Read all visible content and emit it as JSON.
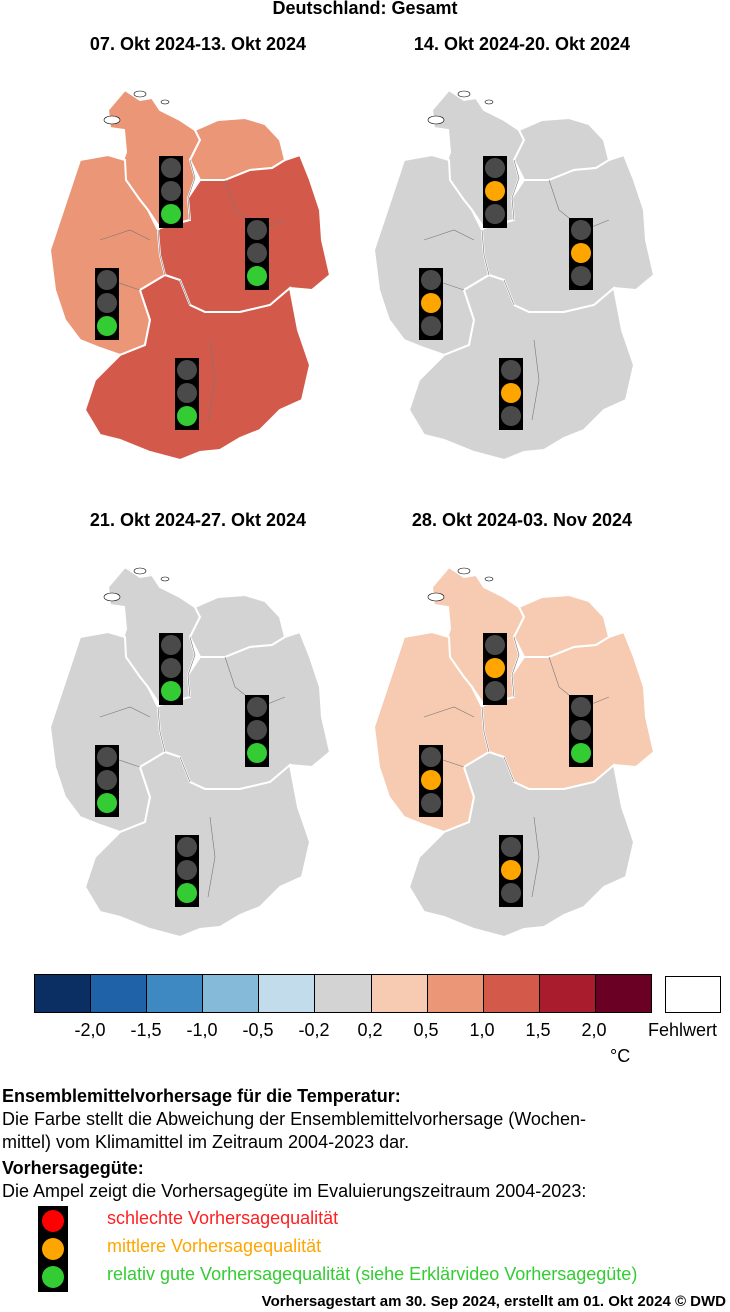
{
  "title": "Deutschland: Gesamt",
  "colors": {
    "bin_n20": "#0b2f63",
    "bin_n15": "#2062a8",
    "bin_n10": "#3f89c2",
    "bin_n05": "#85bad9",
    "bin_n02": "#c3dceb",
    "bin_0": "#d3d3d3",
    "bin_p02": "#f6cbb2",
    "bin_p05": "#ec9678",
    "bin_p10": "#d35a4b",
    "bin_p15": "#a81c2e",
    "bin_p20": "#6a0023",
    "missing": "#ffffff",
    "lamp_off": "#4a4a4a",
    "red": "#ff0000",
    "orange": "#ffa500",
    "green": "#33cc33"
  },
  "panels": [
    {
      "title": "07. Okt 2024-13. Okt 2024",
      "regions": {
        "north": "bin_p05",
        "northwest": "bin_p05",
        "west": "bin_p05",
        "east": "bin_p10",
        "south": "bin_p10"
      },
      "lights": {
        "north": "green",
        "west": "green",
        "east": "green",
        "south": "green"
      }
    },
    {
      "title": "14. Okt 2024-20. Okt 2024",
      "regions": {
        "north": "bin_0",
        "northwest": "bin_0",
        "west": "bin_0",
        "east": "bin_0",
        "south": "bin_0"
      },
      "lights": {
        "north": "orange",
        "west": "orange",
        "east": "orange",
        "south": "orange"
      }
    },
    {
      "title": "21. Okt 2024-27. Okt 2024",
      "regions": {
        "north": "bin_0",
        "northwest": "bin_0",
        "west": "bin_0",
        "east": "bin_0",
        "south": "bin_0"
      },
      "lights": {
        "north": "green",
        "west": "green",
        "east": "green",
        "south": "green"
      }
    },
    {
      "title": "28. Okt 2024-03. Nov 2024",
      "regions": {
        "north": "bin_p02",
        "northwest": "bin_p02",
        "west": "bin_p02",
        "east": "bin_p02",
        "south": "bin_0"
      },
      "lights": {
        "north": "orange",
        "west": "orange",
        "east": "green",
        "south": "orange"
      }
    }
  ],
  "colorbar": {
    "bins": [
      "bin_n20",
      "bin_n15",
      "bin_n10",
      "bin_n05",
      "bin_n02",
      "bin_0",
      "bin_p02",
      "bin_p05",
      "bin_p10",
      "bin_p15",
      "bin_p20"
    ],
    "ticks": [
      "-2,0",
      "-1,5",
      "-1,0",
      "-0,5",
      "-0,2",
      "0,2",
      "0,5",
      "1,0",
      "1,5",
      "2,0"
    ],
    "unit": "°C",
    "missing_label": "Fehlwert"
  },
  "section1": {
    "heading": "Ensemblemittelvorhersage für die Temperatur:",
    "line1": "Die Farbe stellt die Abweichung der Ensemblemittelvorhersage (Wochen-",
    "line2": "mittel) vom Klimamittel im Zeitraum 2004-2023 dar."
  },
  "section2": {
    "heading": "Vorhersagegüte:",
    "text": "Die Ampel zeigt die Vorhersagegüte im Evaluierungszeitraum 2004-2023:",
    "items": [
      {
        "color": "red",
        "label": "schlechte Vorhersagequalität"
      },
      {
        "color": "orange",
        "label": "mittlere Vorhersagequalität"
      },
      {
        "color": "green",
        "label": "relativ gute Vorhersagequalität (siehe Erklärvideo Vorhersagegüte)"
      }
    ]
  },
  "footer": "Vorhersagestart am 30. Sep 2024, erstellt am 01. Okt 2024 © DWD"
}
